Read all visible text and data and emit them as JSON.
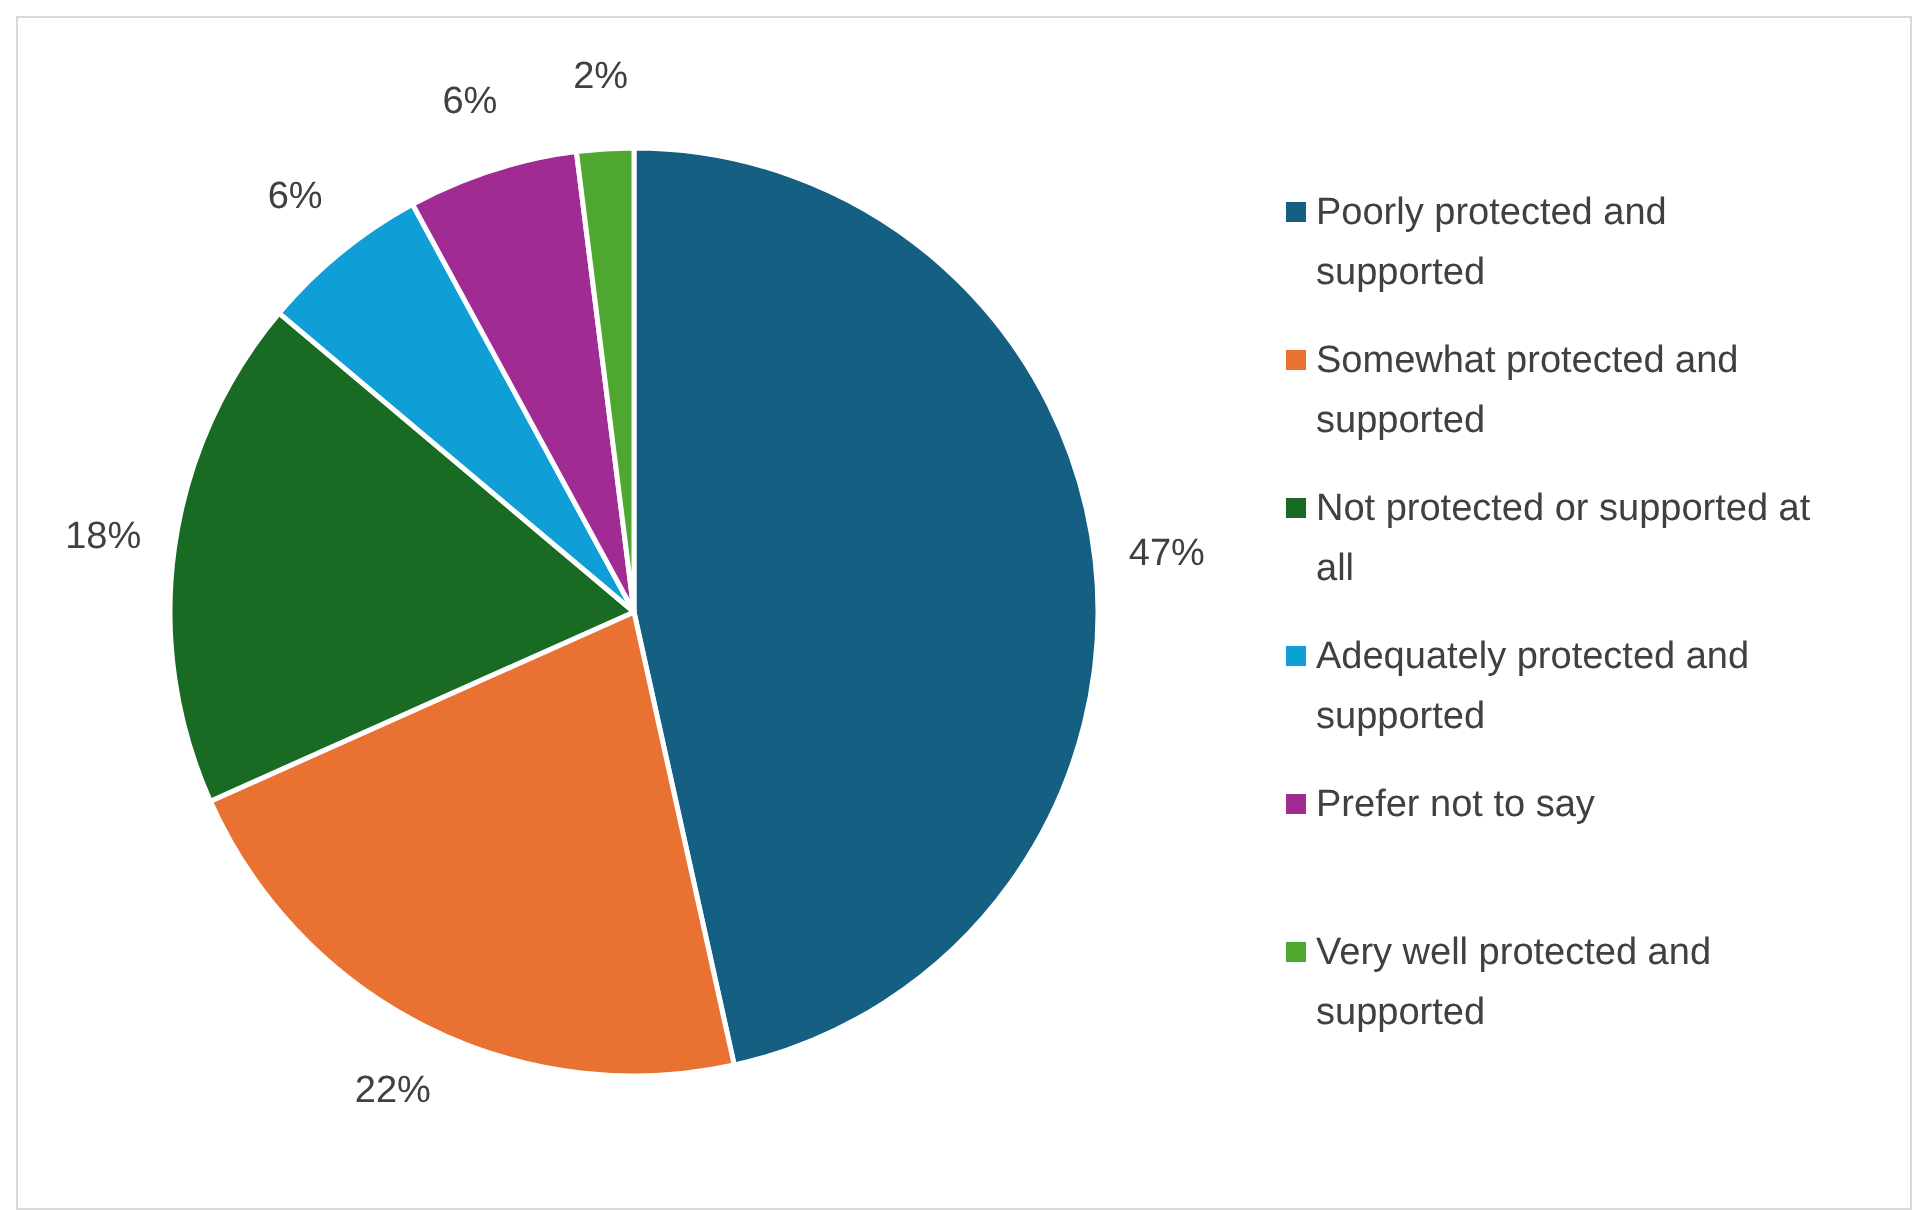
{
  "chart_data": {
    "type": "pie",
    "categories": [
      "Poorly protected and supported",
      "Somewhat protected and supported",
      "Not protected or supported at all",
      "Adequately protected and supported",
      "Prefer not to say",
      "Very well protected and supported"
    ],
    "values": [
      47,
      22,
      18,
      6,
      6,
      2
    ],
    "colors": [
      "#155f82",
      "#e97132",
      "#196b24",
      "#0f9ed5",
      "#a02b93",
      "#4ea72e"
    ],
    "value_labels": [
      "47%",
      "22%",
      "18%",
      "6%",
      "6%",
      "2%"
    ],
    "legend": "right"
  }
}
